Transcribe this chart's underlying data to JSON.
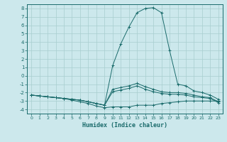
{
  "xlabel": "Humidex (Indice chaleur)",
  "background_color": "#cce8ec",
  "line_color": "#1a6b6b",
  "grid_color": "#a8cece",
  "xlim": [
    -0.5,
    23.5
  ],
  "ylim": [
    -4.5,
    8.5
  ],
  "xticks": [
    0,
    1,
    2,
    3,
    4,
    5,
    6,
    7,
    8,
    9,
    10,
    11,
    12,
    13,
    14,
    15,
    16,
    17,
    18,
    19,
    20,
    21,
    22,
    23
  ],
  "yticks": [
    -4,
    -3,
    -2,
    -1,
    0,
    1,
    2,
    3,
    4,
    5,
    6,
    7,
    8
  ],
  "series": [
    {
      "x": [
        0,
        1,
        2,
        3,
        4,
        5,
        6,
        7,
        8,
        9,
        10,
        11,
        12,
        13,
        14,
        15,
        16,
        17,
        18,
        19,
        20,
        21,
        22,
        23
      ],
      "y": [
        -2.3,
        -2.4,
        -2.5,
        -2.6,
        -2.7,
        -2.8,
        -2.9,
        -3.1,
        -3.3,
        -3.5,
        1.2,
        3.8,
        5.8,
        7.5,
        8.0,
        8.1,
        7.5,
        3.0,
        -1.0,
        -1.2,
        -1.8,
        -2.0,
        -2.3,
        -2.8
      ]
    },
    {
      "x": [
        0,
        1,
        2,
        3,
        4,
        5,
        6,
        7,
        8,
        9,
        10,
        11,
        12,
        13,
        14,
        15,
        16,
        17,
        18,
        19,
        20,
        21,
        22,
        23
      ],
      "y": [
        -2.3,
        -2.4,
        -2.5,
        -2.6,
        -2.7,
        -2.8,
        -2.9,
        -3.1,
        -3.3,
        -3.5,
        -1.6,
        -1.4,
        -1.2,
        -0.9,
        -1.3,
        -1.6,
        -1.9,
        -2.0,
        -2.0,
        -2.1,
        -2.3,
        -2.5,
        -2.6,
        -3.1
      ]
    },
    {
      "x": [
        0,
        1,
        2,
        3,
        4,
        5,
        6,
        7,
        8,
        9,
        10,
        11,
        12,
        13,
        14,
        15,
        16,
        17,
        18,
        19,
        20,
        21,
        22,
        23
      ],
      "y": [
        -2.3,
        -2.4,
        -2.5,
        -2.6,
        -2.7,
        -2.8,
        -2.9,
        -3.1,
        -3.3,
        -3.5,
        -1.9,
        -1.7,
        -1.5,
        -1.2,
        -1.6,
        -1.9,
        -2.1,
        -2.2,
        -2.2,
        -2.3,
        -2.5,
        -2.6,
        -2.7,
        -3.2
      ]
    },
    {
      "x": [
        0,
        1,
        2,
        3,
        4,
        5,
        6,
        7,
        8,
        9,
        10,
        11,
        12,
        13,
        14,
        15,
        16,
        17,
        18,
        19,
        20,
        21,
        22,
        23
      ],
      "y": [
        -2.3,
        -2.4,
        -2.5,
        -2.6,
        -2.7,
        -2.9,
        -3.1,
        -3.3,
        -3.6,
        -3.8,
        -3.7,
        -3.7,
        -3.7,
        -3.5,
        -3.5,
        -3.5,
        -3.3,
        -3.2,
        -3.1,
        -3.0,
        -3.0,
        -3.0,
        -3.0,
        -3.0
      ]
    }
  ]
}
